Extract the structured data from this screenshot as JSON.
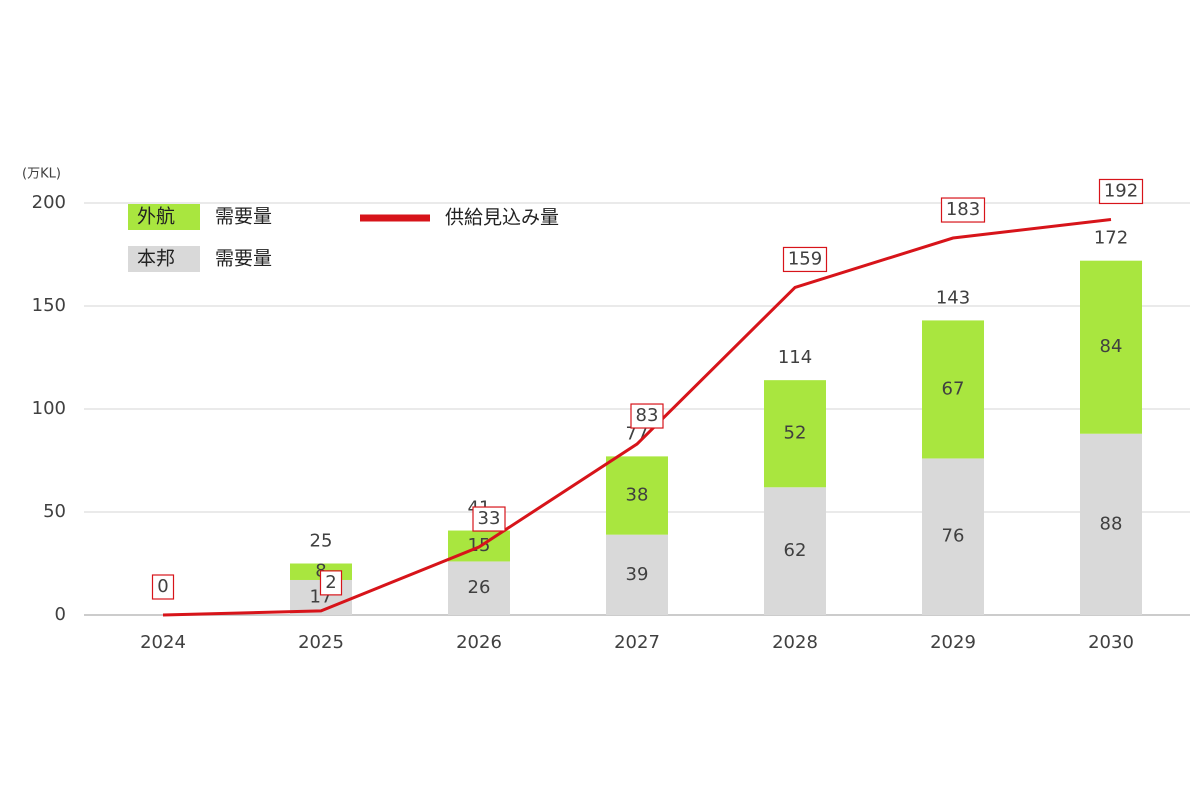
{
  "chart_data": {
    "type": "bar",
    "stacked": true,
    "y_unit_label": "(万KL)",
    "categories": [
      "2024",
      "2025",
      "2026",
      "2027",
      "2028",
      "2029",
      "2030"
    ],
    "series": [
      {
        "name": "本邦",
        "suffix": "需要量",
        "kind": "bar",
        "color": "#d9d9d9",
        "values": [
          null,
          17,
          26,
          39,
          62,
          76,
          88
        ]
      },
      {
        "name": "外航",
        "suffix": "需要量",
        "kind": "bar",
        "color": "#a9e63f",
        "values": [
          null,
          8,
          15,
          38,
          52,
          67,
          84
        ]
      },
      {
        "name": "供給見込み量",
        "kind": "line",
        "color": "#d7141a",
        "values": [
          0,
          2,
          33,
          83,
          159,
          183,
          192
        ]
      }
    ],
    "totals": [
      null,
      25,
      41,
      77,
      114,
      143,
      172
    ],
    "ylim": [
      0,
      200
    ],
    "yticks": [
      0,
      50,
      100,
      150,
      200
    ],
    "grid": true
  }
}
